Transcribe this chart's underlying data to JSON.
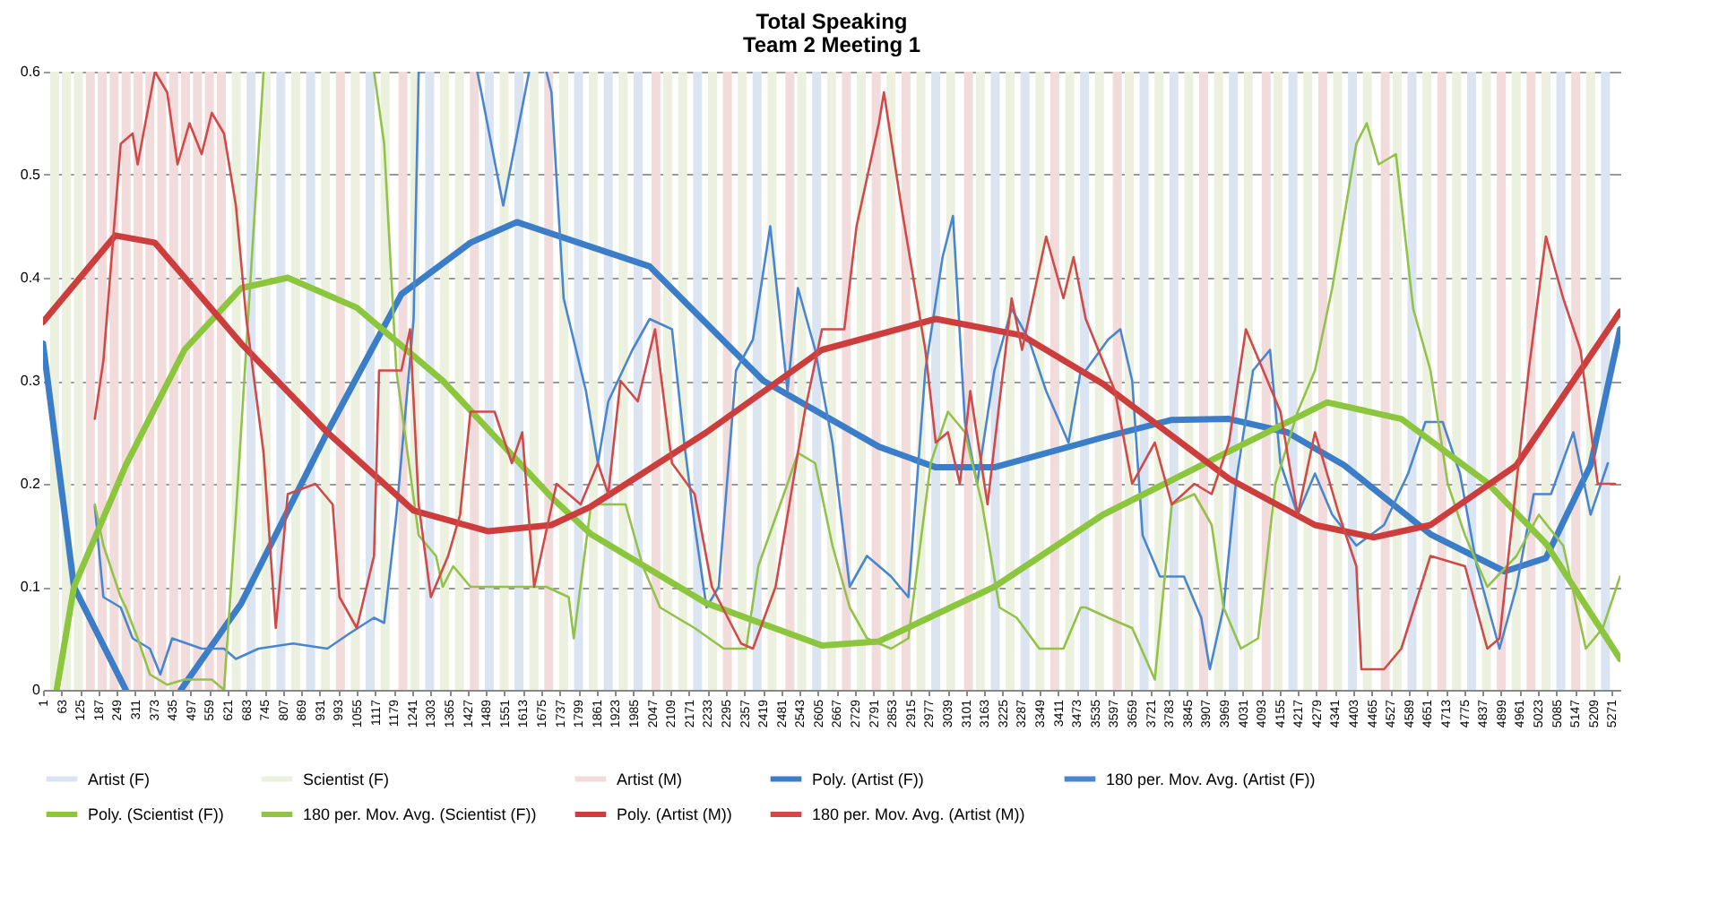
{
  "chart_data": {
    "type": "line",
    "title": "Total Speaking",
    "subtitle": "Team 2 Meeting 1",
    "xlim": [
      1,
      5300
    ],
    "ylim": [
      0,
      0.6
    ],
    "xticks": [
      1,
      63,
      125,
      187,
      249,
      311,
      373,
      435,
      497,
      559,
      621,
      683,
      745,
      807,
      869,
      931,
      993,
      1055,
      1117,
      1179,
      1241,
      1303,
      1365,
      1427,
      1489,
      1551,
      1613,
      1675,
      1737,
      1799,
      1861,
      1923,
      1985,
      2047,
      2109,
      2171,
      2233,
      2295,
      2357,
      2419,
      2481,
      2543,
      2605,
      2667,
      2729,
      2791,
      2853,
      2915,
      2977,
      3039,
      3101,
      3163,
      3225,
      3287,
      3349,
      3411,
      3473,
      3535,
      3597,
      3659,
      3721,
      3783,
      3845,
      3907,
      3969,
      4031,
      4093,
      4155,
      4217,
      4279,
      4341,
      4403,
      4465,
      4527,
      4589,
      4651,
      4713,
      4775,
      4837,
      4899,
      4961,
      5023,
      5085,
      5147,
      5209,
      5271
    ],
    "yticks": [
      0,
      0.1,
      0.2,
      0.3,
      0.4,
      0.5,
      0.6
    ],
    "grid": "y",
    "legend": "bottom",
    "series": [
      {
        "name": "Artist (F)",
        "type": "bar",
        "color": "#dbe5f1",
        "x": [
          700,
          800,
          900,
          1100,
          1300,
          1500,
          1600,
          1800,
          1900,
          2000,
          2200,
          2400,
          2600,
          3000,
          3200,
          3300,
          3500,
          3700,
          3800,
          4000,
          4200,
          4400,
          4600,
          4800,
          5100,
          5250
        ],
        "values": [
          0.6,
          0.6,
          0.6,
          0.6,
          0.6,
          0.6,
          0.6,
          0.6,
          0.6,
          0.6,
          0.6,
          0.6,
          0.6,
          0.6,
          0.6,
          0.6,
          0.6,
          0.6,
          0.6,
          0.6,
          0.6,
          0.6,
          0.6,
          0.6,
          0.6,
          0.6
        ]
      },
      {
        "name": "Scientist (F)",
        "type": "bar",
        "color": "#ebf1de",
        "x": [
          40,
          80,
          120,
          650,
          750,
          850,
          950,
          1050,
          1150,
          1250,
          1350,
          1400,
          1550,
          1650,
          1750,
          1850,
          1950,
          2100,
          2150,
          2250,
          2350,
          2450,
          2550,
          2650,
          2750,
          2850,
          2950,
          3050,
          3150,
          3250,
          3350,
          3450,
          3550,
          3650,
          3750,
          3850,
          3950,
          4050,
          4150,
          4250,
          4350,
          4450,
          4550,
          4650,
          4750,
          4850,
          4950,
          5050,
          5200
        ],
        "values": [
          0.6,
          0.6,
          0.6,
          0.6,
          0.6,
          0.6,
          0.6,
          0.6,
          0.6,
          0.6,
          0.6,
          0.6,
          0.6,
          0.6,
          0.6,
          0.6,
          0.6,
          0.6,
          0.6,
          0.6,
          0.6,
          0.6,
          0.6,
          0.6,
          0.6,
          0.6,
          0.6,
          0.6,
          0.6,
          0.6,
          0.6,
          0.6,
          0.6,
          0.6,
          0.6,
          0.6,
          0.6,
          0.6,
          0.6,
          0.6,
          0.6,
          0.6,
          0.6,
          0.6,
          0.6,
          0.6,
          0.6,
          0.6,
          0.6
        ]
      },
      {
        "name": "Artist (M)",
        "type": "bar",
        "color": "#f2dcdb",
        "x": [
          160,
          200,
          240,
          280,
          320,
          360,
          400,
          440,
          480,
          520,
          560,
          600,
          1000,
          1210,
          1450,
          1700,
          2060,
          2300,
          2510,
          2700,
          2800,
          2900,
          3110,
          3400,
          3610,
          3900,
          4110,
          4300,
          4510,
          4700,
          4900,
          5000,
          5150
        ],
        "values": [
          0.6,
          0.6,
          0.6,
          0.6,
          0.6,
          0.6,
          0.6,
          0.6,
          0.6,
          0.6,
          0.6,
          0.6,
          0.6,
          0.6,
          0.6,
          0.6,
          0.6,
          0.6,
          0.6,
          0.6,
          0.6,
          0.6,
          0.6,
          0.6,
          0.6,
          0.6,
          0.6,
          0.6,
          0.6,
          0.6,
          0.6,
          0.6,
          0.6
        ]
      },
      {
        "name": "Poly. (Artist (F))",
        "color": "#3c7dc8",
        "x": [
          1,
          105,
          279,
          370,
          464,
          667,
          956,
          1205,
          1437,
          1593,
          2039,
          2421,
          2809,
          3000,
          3197,
          3562,
          3793,
          3985,
          4181,
          4372,
          4662,
          4911,
          5050,
          5200,
          5299
        ],
        "values": [
          0.336,
          0.1,
          0,
          null,
          0,
          0.084,
          0.25,
          0.384,
          0.434,
          0.454,
          0.411,
          0.3,
          0.236,
          0.216,
          0.216,
          0.245,
          0.262,
          0.263,
          0.25,
          0.218,
          0.151,
          0.115,
          0.128,
          0.218,
          0.35
        ]
      },
      {
        "name": "180 per. Mov. Avg. (Artist (F))",
        "color": "#4a86d0",
        "x": [
          175,
          204,
          262,
          302,
          360,
          395,
          435,
          534,
          609,
          649,
          725,
          841,
          956,
          1032,
          1113,
          1147,
          1188,
          1246,
          1263,
          1362,
          1460,
          1547,
          1634,
          1663,
          1692,
          1709,
          1750,
          1825,
          1865,
          1900,
          1981,
          2039,
          2114,
          2155,
          2190,
          2230,
          2271,
          2329,
          2386,
          2444,
          2502,
          2537,
          2595,
          2653,
          2711,
          2769,
          2850,
          2908,
          2965,
          3023,
          3058,
          3098,
          3139,
          3197,
          3255,
          3313,
          3371,
          3446,
          3487,
          3504,
          3579,
          3620,
          3660,
          3695,
          3753,
          3834,
          3892,
          3921,
          3967,
          4008,
          4066,
          4123,
          4158,
          4216,
          4274,
          4332,
          4413,
          4506,
          4587,
          4645,
          4703,
          4761,
          4818,
          4894,
          4951,
          5009,
          5067,
          5142,
          5200,
          5258
        ],
        "values": [
          0.178,
          0.09,
          0.08,
          0.05,
          0.04,
          0.015,
          0.05,
          0.04,
          0.04,
          0.03,
          0.04,
          0.045,
          0.04,
          0.055,
          0.07,
          0.065,
          0.17,
          0.36,
          0.6,
          null,
          0.6,
          0.47,
          0.6,
          null,
          0.6,
          0.58,
          0.38,
          0.29,
          0.22,
          0.28,
          0.33,
          0.36,
          0.35,
          0.24,
          0.16,
          0.08,
          0.1,
          0.31,
          0.34,
          0.45,
          0.29,
          0.39,
          0.33,
          0.24,
          0.1,
          0.13,
          0.11,
          0.09,
          0.31,
          0.42,
          0.46,
          0.26,
          0.2,
          0.31,
          0.37,
          0.34,
          0.29,
          0.24,
          0.31,
          0.31,
          0.34,
          0.35,
          0.3,
          0.15,
          0.11,
          0.11,
          0.07,
          0.02,
          0.08,
          0.2,
          0.31,
          0.33,
          0.22,
          0.17,
          0.21,
          0.17,
          0.14,
          0.16,
          0.21,
          0.26,
          0.26,
          0.21,
          0.12,
          0.04,
          0.1,
          0.19,
          0.19,
          0.25,
          0.17,
          0.22
        ]
      },
      {
        "name": "Poly. (Scientist (F))",
        "color": "#8cc63e",
        "x": [
          47,
          105,
          279,
          476,
          667,
          823,
          1055,
          1344,
          1709,
          1842,
          2230,
          2618,
          2809,
          3197,
          3562,
          3892,
          4315,
          4564,
          4853,
          5050,
          5299
        ],
        "values": [
          0,
          0.1,
          0.218,
          0.33,
          0.39,
          0.4,
          0.371,
          0.3,
          0.187,
          0.151,
          0.084,
          0.043,
          0.047,
          0.1,
          0.17,
          0.218,
          0.279,
          0.263,
          0.201,
          0.142,
          0.03
        ]
      },
      {
        "name": "180 per. Mov. Avg. (Scientist (F))",
        "color": "#93c24a",
        "x": [
          175,
          204,
          262,
          279,
          319,
          360,
          418,
          476,
          568,
          609,
          649,
          707,
          742,
          898,
          1113,
          1147,
          1188,
          1263,
          1321,
          1344,
          1379,
          1437,
          1535,
          1634,
          1692,
          1767,
          1784,
          1842,
          1900,
          1958,
          2016,
          2074,
          2190,
          2288,
          2363,
          2404,
          2502,
          2537,
          2595,
          2653,
          2711,
          2769,
          2850,
          2908,
          2983,
          3041,
          3098,
          3156,
          3214,
          3272,
          3348,
          3429,
          3487,
          3504,
          3579,
          3660,
          3736,
          3793,
          3869,
          3927,
          3967,
          4025,
          4083,
          4141,
          4216,
          4274,
          4332,
          4413,
          4448,
          4488,
          4546,
          4604,
          4662,
          4720,
          4778,
          4853,
          4951,
          5026,
          5108,
          5184,
          5241,
          5299
        ],
        "values": [
          0.18,
          0.14,
          0.09,
          0.08,
          0.05,
          0.015,
          0.005,
          0.01,
          0.01,
          0,
          0.17,
          0.44,
          0.6,
          null,
          0.6,
          0.53,
          0.31,
          0.15,
          0.13,
          0.1,
          0.12,
          0.1,
          0.1,
          0.1,
          0.1,
          0.09,
          0.05,
          0.18,
          0.18,
          0.18,
          0.12,
          0.08,
          0.06,
          0.04,
          0.04,
          0.12,
          0.2,
          0.23,
          0.22,
          0.14,
          0.08,
          0.05,
          0.04,
          0.05,
          0.22,
          0.27,
          0.25,
          0.18,
          0.08,
          0.07,
          0.04,
          0.04,
          0.08,
          0.08,
          0.07,
          0.06,
          0.01,
          0.18,
          0.19,
          0.16,
          0.08,
          0.04,
          0.05,
          0.2,
          0.27,
          0.31,
          0.39,
          0.53,
          0.55,
          0.51,
          0.52,
          0.37,
          0.31,
          0.2,
          0.15,
          0.1,
          0.13,
          0.17,
          0.14,
          0.04,
          0.06,
          0.11
        ]
      },
      {
        "name": "Poly. (Artist (M))",
        "color": "#cc3d3d",
        "x": [
          1,
          244,
          377,
          667,
          956,
          1246,
          1495,
          1709,
          1842,
          2230,
          2618,
          3000,
          3290,
          3562,
          3695,
          3985,
          4274,
          4471,
          4662,
          4951,
          5299
        ],
        "values": [
          0.357,
          0.441,
          0.434,
          0.336,
          0.25,
          0.174,
          0.154,
          0.16,
          0.178,
          0.25,
          0.33,
          0.36,
          0.344,
          0.297,
          0.268,
          0.205,
          0.16,
          0.148,
          0.16,
          0.218,
          0.367
        ]
      },
      {
        "name": "180 per. Mov. Avg. (Artist (M))",
        "color": "#d04a4a",
        "x": [
          175,
          204,
          262,
          302,
          319,
          377,
          418,
          453,
          493,
          534,
          568,
          609,
          649,
          684,
          742,
          783,
          823,
          916,
          974,
          997,
          1055,
          1113,
          1130,
          1205,
          1234,
          1263,
          1304,
          1362,
          1402,
          1437,
          1518,
          1576,
          1611,
          1651,
          1726,
          1807,
          1865,
          1900,
          1941,
          1999,
          2057,
          2114,
          2190,
          2248,
          2346,
          2386,
          2462,
          2560,
          2618,
          2693,
          2734,
          2809,
          2826,
          2884,
          2965,
          3000,
          3041,
          3081,
          3116,
          3174,
          3255,
          3290,
          3371,
          3429,
          3463,
          3504,
          3602,
          3660,
          3736,
          3793,
          3869,
          3927,
          3985,
          4042,
          4100,
          4158,
          4216,
          4274,
          4355,
          4413,
          4430,
          4506,
          4564,
          4662,
          4778,
          4853,
          4894,
          4992,
          5050,
          5108,
          5166,
          5224,
          5282
        ],
        "values": [
          0.263,
          0.32,
          0.53,
          0.54,
          0.51,
          0.6,
          0.58,
          0.51,
          0.55,
          0.52,
          0.56,
          0.54,
          0.47,
          0.36,
          0.23,
          0.06,
          0.19,
          0.2,
          0.18,
          0.09,
          0.06,
          0.13,
          0.31,
          0.31,
          0.35,
          0.18,
          0.09,
          0.13,
          0.17,
          0.27,
          0.27,
          0.22,
          0.25,
          0.1,
          0.2,
          0.18,
          0.22,
          0.19,
          0.3,
          0.28,
          0.35,
          0.22,
          0.19,
          0.1,
          0.045,
          0.04,
          0.1,
          0.27,
          0.35,
          0.35,
          0.45,
          0.55,
          0.58,
          0.47,
          0.33,
          0.24,
          0.25,
          0.2,
          0.29,
          0.18,
          0.38,
          0.33,
          0.44,
          0.38,
          0.42,
          0.36,
          0.29,
          0.2,
          0.24,
          0.18,
          0.2,
          0.19,
          0.24,
          0.35,
          0.31,
          0.27,
          0.17,
          0.25,
          0.17,
          0.12,
          0.02,
          0.02,
          0.04,
          0.13,
          0.12,
          0.04,
          0.05,
          0.31,
          0.44,
          0.38,
          0.33,
          0.2,
          0.2
        ]
      }
    ]
  }
}
